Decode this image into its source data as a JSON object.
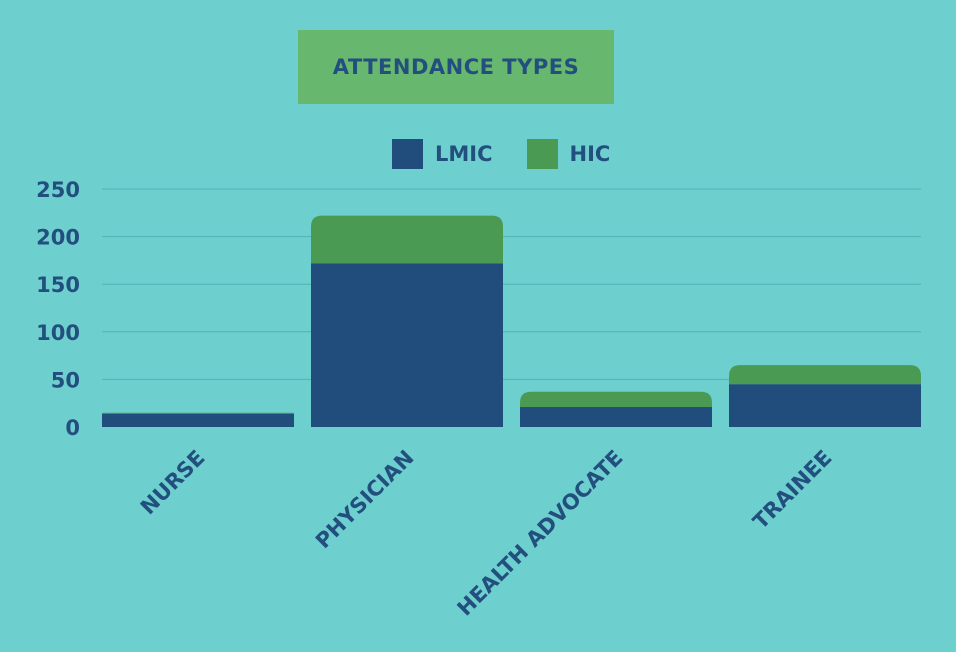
{
  "colors": {
    "background": "#6ecfcf",
    "title_bg": "#68b76f",
    "lmic": "#214d7c",
    "hic": "#4b9a53",
    "text": "#234f7e",
    "grid": "#52b2b4"
  },
  "chart_data": {
    "type": "bar",
    "stacked": true,
    "title": "ATTENDANCE TYPES",
    "categories": [
      "NURSE",
      "PHYSICIAN",
      "HEALTH ADVOCATE",
      "TRAINEE"
    ],
    "series": [
      {
        "name": "LMIC",
        "values": [
          14,
          172,
          21,
          45
        ]
      },
      {
        "name": "HIC",
        "values": [
          1,
          50,
          16,
          20
        ]
      }
    ],
    "yticks": [
      "0",
      "50",
      "100",
      "150",
      "200",
      "250"
    ],
    "ylim": [
      0,
      250
    ],
    "grid": true,
    "legend": "top"
  }
}
